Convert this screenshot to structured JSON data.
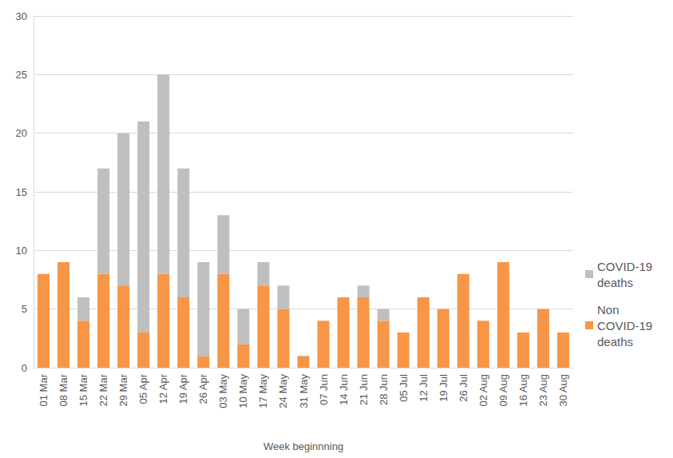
{
  "chart_data": {
    "type": "bar",
    "x_label": "Week beginnning",
    "categories": [
      "01 Mar",
      "08 Mar",
      "15 Mar",
      "22 Mar",
      "29 Mar",
      "05 Apr",
      "12 Apr",
      "19 Apr",
      "26 Apr",
      "03 May",
      "10 May",
      "17 May",
      "24 May",
      "31 May",
      "07 Jun",
      "14 Jun",
      "21 Jun",
      "28 Jun",
      "05 Jul",
      "12 Jul",
      "19 Jul",
      "26 Jul",
      "02 Aug",
      "09 Aug",
      "16 Aug",
      "23 Aug",
      "30 Aug"
    ],
    "series": [
      {
        "name": "Non COVID-19 deaths",
        "color": "#f79646",
        "values": [
          8,
          9,
          4,
          8,
          7,
          3,
          8,
          6,
          1,
          8,
          2,
          7,
          5,
          1,
          4,
          6,
          6,
          4,
          3,
          6,
          5,
          8,
          4,
          9,
          3,
          5,
          3
        ]
      },
      {
        "name": "COVID-19 deaths",
        "color": "#bfbfbf",
        "values": [
          0,
          0,
          2,
          9,
          13,
          18,
          17,
          11,
          8,
          5,
          3,
          2,
          2,
          0,
          0,
          0,
          1,
          1,
          0,
          0,
          0,
          0,
          0,
          0,
          0,
          0,
          0
        ]
      }
    ],
    "stacked": true,
    "ylim": [
      0,
      30
    ],
    "yticks": [
      0,
      5,
      10,
      15,
      20,
      25,
      30
    ],
    "grid": true,
    "legend": "right"
  }
}
